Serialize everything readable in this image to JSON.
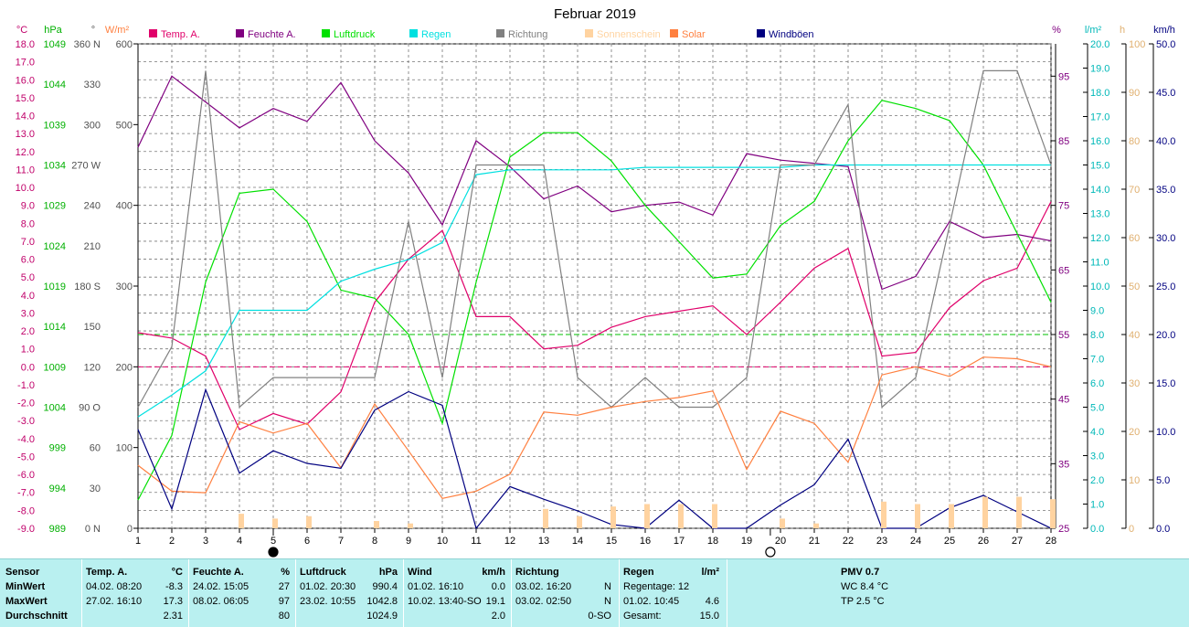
{
  "chart_data": {
    "type": "line",
    "title": "Februar 2019",
    "x": [
      1,
      2,
      3,
      4,
      5,
      6,
      7,
      8,
      9,
      10,
      11,
      12,
      13,
      14,
      15,
      16,
      17,
      18,
      19,
      20,
      21,
      22,
      23,
      24,
      25,
      26,
      27,
      28
    ],
    "xlim": [
      1,
      28
    ],
    "legend": {
      "placement": "top",
      "entries": [
        "Temp. A.",
        "Feuchte A.",
        "Luftdruck",
        "Regen",
        "Richtung",
        "Sonnenschein",
        "Solar",
        "Windböen"
      ]
    },
    "axes": {
      "temp": {
        "unit": "°C",
        "min": -9,
        "max": 18,
        "ticks": [
          "18.0",
          "17.0",
          "16.0",
          "15.0",
          "14.0",
          "13.0",
          "12.0",
          "11.0",
          "10.0",
          "9.0",
          "8.0",
          "7.0",
          "6.0",
          "5.0",
          "4.0",
          "3.0",
          "2.0",
          "1.0",
          "0.0",
          "-1.0",
          "-2.0",
          "-3.0",
          "-4.0",
          "-5.0",
          "-6.0",
          "-7.0",
          "-8.0",
          "-9.0"
        ]
      },
      "pressure": {
        "unit": "hPa",
        "min": 989,
        "max": 1049,
        "ticks": [
          "1049",
          "1044",
          "1039",
          "1034",
          "1029",
          "1024",
          "1019",
          "1014",
          "1009",
          "1004",
          "999",
          "994",
          "989"
        ]
      },
      "direction": {
        "unit": "°",
        "min": 0,
        "max": 360,
        "ticks": [
          "360 N",
          "330",
          "300",
          "270 W",
          "240",
          "210",
          "180 S",
          "150",
          "120",
          "90 O",
          "60",
          "30",
          "0 N"
        ]
      },
      "solar": {
        "unit": "W/m²",
        "min": 0,
        "max": 600,
        "ticks": [
          "600",
          "500",
          "400",
          "300",
          "200",
          "100",
          "0"
        ]
      },
      "humidity": {
        "unit": "%",
        "min": 25,
        "max": 100,
        "ticks": [
          "95",
          "85",
          "75",
          "65",
          "55",
          "45",
          "35",
          "25"
        ]
      },
      "rain": {
        "unit": "l/m²",
        "min": 0,
        "max": 20,
        "ticks": [
          "20.0",
          "19.0",
          "18.0",
          "17.0",
          "16.0",
          "15.0",
          "14.0",
          "13.0",
          "12.0",
          "11.0",
          "10.0",
          "9.0",
          "8.0",
          "7.0",
          "6.0",
          "5.0",
          "4.0",
          "3.0",
          "2.0",
          "1.0",
          "0.0"
        ]
      },
      "sunshine": {
        "unit": "h",
        "min": 0,
        "max": 100,
        "ticks": [
          "100",
          "90",
          "80",
          "70",
          "60",
          "50",
          "40",
          "30",
          "20",
          "10",
          "0"
        ]
      },
      "wind": {
        "unit": "km/h",
        "min": 0,
        "max": 50,
        "ticks": [
          "50.0",
          "45.0",
          "40.0",
          "35.0",
          "30.0",
          "25.0",
          "20.0",
          "15.0",
          "10.0",
          "5.0",
          "0.0"
        ]
      }
    },
    "series": [
      {
        "name": "Temp. A.",
        "color": "#e0006a",
        "axis": "temp",
        "values": [
          1.9,
          1.6,
          0.6,
          -3.5,
          -2.6,
          -3.2,
          -1.4,
          3.6,
          6.0,
          7.6,
          2.8,
          2.8,
          1.0,
          1.2,
          2.2,
          2.8,
          3.1,
          3.4,
          1.8,
          3.6,
          5.5,
          6.6,
          0.6,
          0.8,
          3.3,
          4.8,
          5.5,
          9.2
        ]
      },
      {
        "name": "Feuchte A.",
        "color": "#800080",
        "axis": "humidity",
        "values": [
          84,
          95,
          91,
          87,
          90,
          88,
          94,
          85,
          80,
          72,
          85,
          81,
          76,
          78,
          74,
          75,
          75.5,
          73.5,
          83,
          82,
          81.5,
          81,
          62,
          64,
          72.5,
          70,
          70.5,
          69.5
        ]
      },
      {
        "name": "Luftdruck",
        "color": "#00e000",
        "axis": "pressure",
        "values": [
          992.5,
          1000.5,
          1019.5,
          1030.5,
          1031,
          1027,
          1018.5,
          1017.5,
          1013,
          1002,
          1019.5,
          1035,
          1038,
          1038,
          1034.5,
          1029,
          1024.5,
          1020,
          1020.5,
          1026.5,
          1029.5,
          1037,
          1042,
          1041,
          1039.5,
          1034,
          1025.5,
          1017
        ]
      },
      {
        "name": "Regen",
        "color": "#00e0e0",
        "axis": "rain",
        "values": [
          4.6,
          5.5,
          6.5,
          9.0,
          9.0,
          9.0,
          10.2,
          10.7,
          11.1,
          11.8,
          14.6,
          14.8,
          14.8,
          14.8,
          14.8,
          14.9,
          14.9,
          14.9,
          14.9,
          14.9,
          15.0,
          15.0,
          15.0,
          15.0,
          15.0,
          15.0,
          15.0,
          15.0
        ]
      },
      {
        "name": "Richtung",
        "color": "#808080",
        "axis": "direction",
        "values": [
          90,
          135,
          340,
          90,
          112,
          112,
          112,
          112,
          228,
          112,
          270,
          270,
          270,
          112,
          90,
          112,
          90,
          90,
          112,
          270,
          270,
          315,
          90,
          112,
          225,
          340,
          340,
          270
        ]
      },
      {
        "name": "Solar",
        "color": "#ff8040",
        "axis": "solar",
        "values": [
          78,
          46,
          44,
          132,
          118,
          130,
          75,
          154,
          96,
          37,
          46,
          67,
          144,
          140,
          150,
          157,
          162,
          170,
          73,
          145,
          130,
          82,
          190,
          200,
          188,
          212,
          210,
          200
        ]
      },
      {
        "name": "Windböen",
        "color": "#000080",
        "axis": "wind",
        "values": [
          10.2,
          2.0,
          14.3,
          5.7,
          8.0,
          6.7,
          6.2,
          12.2,
          14.1,
          12.7,
          0.0,
          4.3,
          3.0,
          1.8,
          0.4,
          0.0,
          2.9,
          0.0,
          0.0,
          2.4,
          4.5,
          9.2,
          0.0,
          0.0,
          2.1,
          3.4,
          1.7,
          0.0
        ]
      },
      {
        "name": "Sonnenschein",
        "color": "#ffd3a0",
        "type": "bar",
        "axis": "sunshine",
        "values": [
          0,
          0,
          0,
          3,
          2,
          2.5,
          0,
          1.5,
          1,
          0,
          0,
          0,
          4,
          2.5,
          4.5,
          5,
          5,
          5,
          0,
          2,
          1,
          0,
          5.5,
          5,
          5,
          6.5,
          6.5,
          6
        ]
      }
    ],
    "reference_lines": [
      {
        "axis": "humidity",
        "value": 55,
        "color": "#00c000",
        "dashed": true
      },
      {
        "axis": "temp",
        "value": 0,
        "color": "#e0006a",
        "dashed": true
      }
    ],
    "markers": [
      {
        "x": 5,
        "symbol": "new-moon"
      },
      {
        "x": 19.7,
        "symbol": "full-moon"
      }
    ],
    "grid": true
  },
  "table": {
    "row_labels": [
      "Sensor",
      "MinWert",
      "MaxWert",
      "Durchschnitt"
    ],
    "temp": {
      "head": "Temp. A.",
      "unit": "°C",
      "min_time": "04.02.  08:20",
      "min": "-8.3",
      "max_time": "27.02.  16:10",
      "max": "17.3",
      "avg": "2.31"
    },
    "hum": {
      "head": "Feuchte A.",
      "unit": "%",
      "min_time": "24.02.  15:05",
      "min": "27",
      "max_time": "08.02.  06:05",
      "max": "97",
      "avg": "80"
    },
    "press": {
      "head": "Luftdruck",
      "unit": "hPa",
      "min_time": "01.02.  20:30",
      "min": "990.4",
      "max_time": "23.02.  10:55",
      "max": "1042.8",
      "avg": "1024.9"
    },
    "wind": {
      "head": "Wind",
      "unit": "km/h",
      "min_time": "01.02.  16:10",
      "min": "0.0",
      "max_time": "10.02.  13:40-SO",
      "max": "19.1",
      "avg": "2.0"
    },
    "dir": {
      "head": "Richtung",
      "min_time": "03.02.  16:20",
      "min": "N",
      "max_time": "03.02.  02:50",
      "max": "N",
      "avg": "0-SO"
    },
    "rain": {
      "head": "Regen",
      "unit": "l/m²",
      "row1": "Regentage: 12",
      "row2_time": "01.02.  10:45",
      "row2": "4.6",
      "row3_label": "Gesamt:",
      "row3": "15.0"
    },
    "pmv": {
      "head": "PMV 0.7",
      "wc": "WC 8.4 °C",
      "tp": "TP 2.5 °C"
    }
  }
}
